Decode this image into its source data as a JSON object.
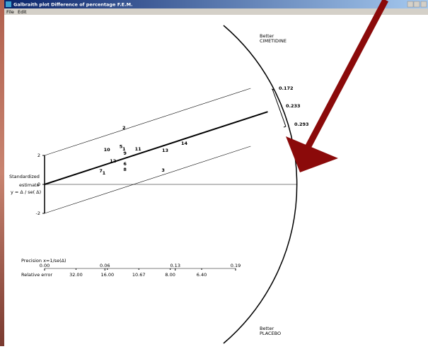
{
  "window": {
    "title": "Galbraith plot Difference of percentage F.E.M.",
    "menu": [
      "File",
      "Edit"
    ]
  },
  "plot": {
    "y_label": [
      "Standardized",
      "estimate",
      "y = Δ / se( Δ)"
    ],
    "ylim": [
      -2,
      2
    ],
    "yticks": [
      -2,
      0,
      2
    ],
    "x_label": "Precision x=1/se(Δ)",
    "xlim": [
      0,
      0.19
    ],
    "xticks": [
      {
        "value": 0,
        "label": "0.00"
      },
      0.06,
      0.13,
      0.19
    ],
    "rel_label": "Relative error",
    "rel_ticks": [
      {
        "value": 0.03125,
        "label": "32.00"
      },
      {
        "value": 0.0625,
        "label": "16.00"
      },
      {
        "value": 0.09375,
        "label": "10.67"
      },
      {
        "value": 0.125,
        "label": "8.00"
      },
      {
        "value": 0.15625,
        "label": "6.40"
      }
    ],
    "fit_slope": 22.6,
    "fit_x_end": 0.222,
    "band": 2,
    "band_x_end": 0.205,
    "points": [
      {
        "label": "2",
        "x": 0.079,
        "y": 3.9
      },
      {
        "label": "10",
        "x": 0.062,
        "y": 2.4
      },
      {
        "label": "5",
        "x": 0.076,
        "y": 2.6
      },
      {
        "label": "1",
        "x": 0.079,
        "y": 2.44
      },
      {
        "label": "9",
        "x": 0.08,
        "y": 2.15
      },
      {
        "label": "11",
        "x": 0.093,
        "y": 2.44
      },
      {
        "label": "13",
        "x": 0.12,
        "y": 2.34
      },
      {
        "label": "14",
        "x": 0.139,
        "y": 2.83
      },
      {
        "label": "12",
        "x": 0.068,
        "y": 1.61
      },
      {
        "label": "6",
        "x": 0.08,
        "y": 1.41
      },
      {
        "label": "8",
        "x": 0.08,
        "y": 1.02
      },
      {
        "label": "7",
        "x": 0.056,
        "y": 0.93
      },
      {
        "label": "1",
        "x": 0.059,
        "y": 0.78
      },
      {
        "label": "3",
        "x": 0.118,
        "y": 0.98
      }
    ],
    "arc_labels": [
      "0.172",
      "0.233",
      "0.293"
    ],
    "top_label": [
      "Better",
      "CIMETIDINE"
    ],
    "bottom_label": [
      "Better",
      "PLACEBO"
    ]
  }
}
